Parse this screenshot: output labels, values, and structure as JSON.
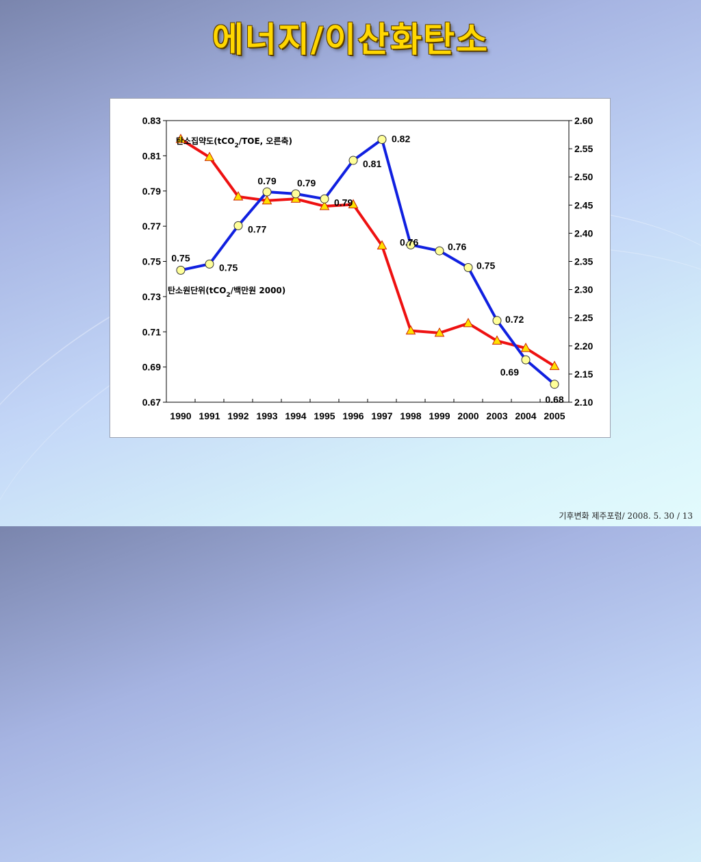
{
  "slide": {
    "title": "에너지/이산화탄소",
    "footer": "기후변화 제주포럼/ 2008. 5. 30 /  13"
  },
  "chart_data": {
    "type": "line",
    "categories": [
      "1990",
      "1991",
      "1992",
      "1993",
      "1994",
      "1995",
      "1996",
      "1997",
      "1998",
      "1999",
      "2000",
      "2003",
      "2004",
      "2005"
    ],
    "y_left": {
      "ticks": [
        "0.83",
        "0.81",
        "0.79",
        "0.77",
        "0.75",
        "0.73",
        "0.71",
        "0.69",
        "0.67"
      ],
      "range": [
        0.67,
        0.83
      ]
    },
    "y_right": {
      "ticks": [
        "2.60",
        "2.55",
        "2.50",
        "2.45",
        "2.40",
        "2.35",
        "2.30",
        "2.25",
        "2.20",
        "2.15",
        "2.10"
      ],
      "range": [
        2.1,
        2.6
      ]
    },
    "series": [
      {
        "label_prefix": "탄소원단위(tCO",
        "label_sub": "2",
        "label_suffix": "/백만원 2000)",
        "axis": "left",
        "color": "#1020e0",
        "marker": "circle",
        "marker_color": "#ffff99",
        "values": [
          0.745,
          0.7485,
          0.7703,
          0.7895,
          0.7884,
          0.7855,
          0.8074,
          0.8193,
          0.7594,
          0.756,
          0.7465,
          0.7164,
          0.6941,
          0.6802
        ],
        "data_labels": [
          "0.75",
          "0.75",
          "0.77",
          "0.79",
          "0.79",
          "0.79",
          "0.81",
          "0.82",
          "0.76",
          "0.76",
          "0.75",
          "0.72",
          "0.69",
          "0.68"
        ]
      },
      {
        "label_prefix": "탄소집약도(tCO",
        "label_sub": "2",
        "label_suffix": "/TOE, 오른축)",
        "axis": "right",
        "color": "#ee1111",
        "marker": "triangle",
        "marker_color": "#ffe000",
        "values": [
          2.567,
          2.535,
          2.465,
          2.458,
          2.461,
          2.448,
          2.451,
          2.378,
          2.227,
          2.223,
          2.24,
          2.209,
          2.196,
          2.164
        ]
      }
    ],
    "grid": false
  }
}
